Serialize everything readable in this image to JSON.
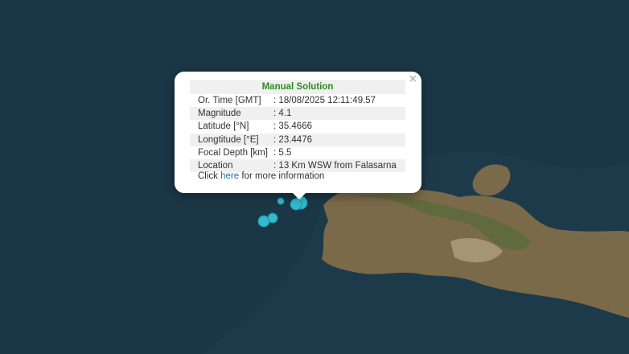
{
  "popup": {
    "title": "Manual Solution",
    "close": "×",
    "rows": [
      [
        "Or. Time [GMT]",
        ": 18/08/2025 12:11:49.57"
      ],
      [
        "Magnitude",
        ": 4.1"
      ],
      [
        "Latitude [°N]",
        ": 35.4666"
      ],
      [
        "Longtitude [°E]",
        ": 23.4476"
      ],
      [
        "Focal Depth [km]",
        ": 5.5"
      ],
      [
        "Location",
        ": 13 Km WSW from Falasarna"
      ]
    ],
    "footer": {
      "before": "Click",
      "link": "here",
      "after": "for more information"
    }
  }
}
